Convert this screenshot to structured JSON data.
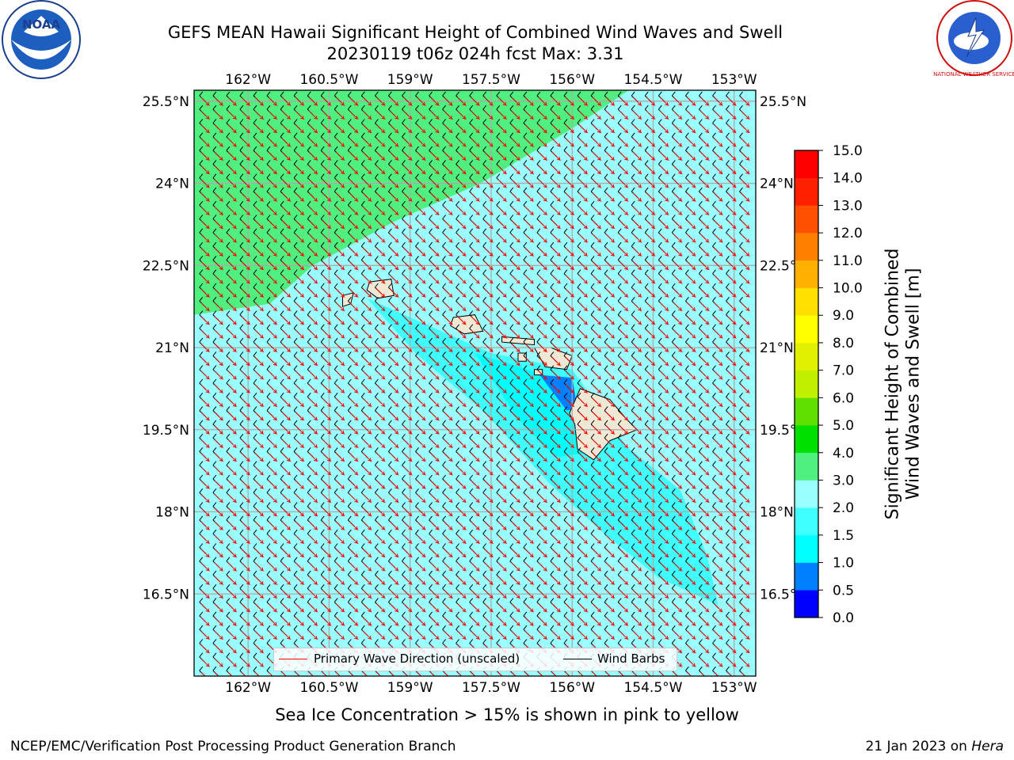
{
  "title": {
    "line1": "GEFS MEAN Hawaii Significant Height of Combined Wind Waves and Swell",
    "line2": "20230119 t06z 024h fcst   Max: 3.31"
  },
  "logos": {
    "noaa_text": "NOAA",
    "noaa_ring": "NATIONAL OCEANIC AND ATMOSPHERIC ADMINISTRATION",
    "noaa_ring_bottom": "U.S. DEPARTMENT OF COMMERCE",
    "nws_ring": "NATIONAL WEATHER SERVICE"
  },
  "map": {
    "lon_labels": [
      "162°W",
      "160.5°W",
      "159°W",
      "157.5°W",
      "156°W",
      "154.5°W",
      "153°W"
    ],
    "lat_labels": [
      "25.5°N",
      "24°N",
      "22.5°N",
      "21°N",
      "19.5°N",
      "18°N",
      "16.5°N"
    ],
    "extent": {
      "lon_min": -163.0,
      "lon_max": -152.6,
      "lat_min": 15.0,
      "lat_max": 25.7
    },
    "grid": true,
    "colors": {
      "land": "#eee8d5",
      "coast": "#000000",
      "wave_dir": "#ff0000",
      "barb": "#000000"
    }
  },
  "legend": {
    "primary_wave": "Primary Wave Direction (unscaled)",
    "wind_barbs": "Wind Barbs",
    "placement": "lower-center"
  },
  "colorbar": {
    "label_line1": "Significant Height of Combined",
    "label_line2": "Wind Waves and Swell [m]",
    "ticks": [
      "0.0",
      "0.5",
      "1.0",
      "1.5",
      "2.0",
      "3.0",
      "4.0",
      "5.0",
      "6.0",
      "7.0",
      "8.0",
      "9.0",
      "10.0",
      "11.0",
      "12.0",
      "13.0",
      "14.0",
      "15.0"
    ],
    "colors": [
      "#0000ff",
      "#0080ff",
      "#00ffff",
      "#40ffff",
      "#99ffff",
      "#50f080",
      "#00e000",
      "#60e000",
      "#c0f000",
      "#e0f000",
      "#ffff00",
      "#ffe000",
      "#ffb000",
      "#ff8000",
      "#ff5000",
      "#ff2000",
      "#ff0000"
    ]
  },
  "subtitle": "Sea Ice Concentration > 15% is shown in pink to yellow",
  "footer": {
    "left": "NCEP/EMC/Verification Post Processing Product Generation Branch",
    "date": "21 Jan 2023 on ",
    "host": "Hera"
  }
}
